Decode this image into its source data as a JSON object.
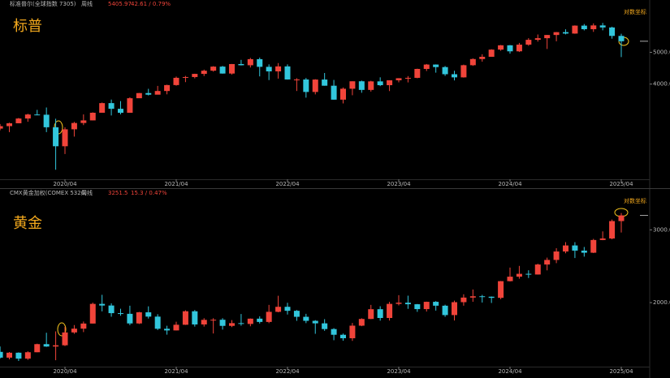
{
  "chart_data": [
    {
      "type": "candlestick",
      "title": "标普",
      "instrument": "标准普尔(全球指数 7305)",
      "period": "周线",
      "price": "5405.97",
      "change": "42.61 / 0.79%",
      "scale_label": "对数坐标",
      "log_scale": true,
      "up_color": "#f0443a",
      "down_color": "#32c6dc",
      "x": [
        "2019/09",
        "2019/10",
        "2019/11",
        "2019/12",
        "2020/01",
        "2020/02",
        "2020/03",
        "2020/04",
        "2020/05",
        "2020/06",
        "2020/07",
        "2020/08",
        "2020/09",
        "2020/10",
        "2020/11",
        "2020/12",
        "2021/01",
        "2021/02",
        "2021/03",
        "2021/04",
        "2021/05",
        "2021/06",
        "2021/07",
        "2021/08",
        "2021/09",
        "2021/10",
        "2021/11",
        "2021/12",
        "2022/01",
        "2022/02",
        "2022/03",
        "2022/04",
        "2022/05",
        "2022/06",
        "2022/07",
        "2022/08",
        "2022/09",
        "2022/10",
        "2022/11",
        "2022/12",
        "2023/01",
        "2023/02",
        "2023/03",
        "2023/04",
        "2023/05",
        "2023/06",
        "2023/07",
        "2023/08",
        "2023/09",
        "2023/10",
        "2023/11",
        "2023/12",
        "2024/01",
        "2024/02",
        "2024/03",
        "2024/04",
        "2024/05",
        "2024/06",
        "2024/07",
        "2024/08",
        "2024/09",
        "2024/10",
        "2024/11",
        "2024/12",
        "2025/01",
        "2025/02",
        "2025/03",
        "2025/04"
      ],
      "open": [
        2926,
        2977,
        3038,
        3141,
        3231,
        3226,
        2954,
        2585,
        2912,
        3044,
        3100,
        3271,
        3500,
        3363,
        3270,
        3622,
        3756,
        3714,
        3811,
        3973,
        4181,
        4204,
        4298,
        4395,
        4523,
        4308,
        4605,
        4567,
        4766,
        4516,
        4374,
        4530,
        4132,
        4132,
        3785,
        4130,
        3955,
        3586,
        3872,
        4080,
        3840,
        4077,
        3970,
        4109,
        4169,
        4180,
        4450,
        4589,
        4508,
        4288,
        4194,
        4568,
        4770,
        4846,
        5096,
        5254,
        5036,
        5278,
        5460,
        5522,
        5648,
        5762,
        5705,
        6032,
        5882,
        6041,
        5955,
        5612
      ],
      "high": [
        3022,
        3050,
        3154,
        3248,
        3338,
        3394,
        3136,
        2955,
        3068,
        3233,
        3280,
        3514,
        3588,
        3549,
        3646,
        3760,
        3870,
        3950,
        3983,
        4218,
        4238,
        4302,
        4429,
        4537,
        4546,
        4608,
        4743,
        4808,
        4818,
        4595,
        4637,
        4594,
        4170,
        4177,
        4140,
        4325,
        4119,
        3906,
        4080,
        4101,
        4095,
        4195,
        4110,
        4170,
        4232,
        4458,
        4607,
        4594,
        4541,
        4393,
        4587,
        4793,
        4932,
        5111,
        5265,
        5264,
        5342,
        5524,
        5669,
        5651,
        5768,
        5879,
        6044,
        6100,
        6129,
        6147,
        5987,
        5695
      ],
      "low": [
        2892,
        2855,
        3038,
        3070,
        3214,
        2855,
        2192,
        2448,
        2766,
        2999,
        3101,
        3275,
        3209,
        3233,
        3279,
        3633,
        3694,
        3725,
        3723,
        3955,
        4056,
        4164,
        4233,
        4367,
        4305,
        4279,
        4560,
        4495,
        4223,
        4115,
        4157,
        4129,
        3811,
        3637,
        3721,
        3955,
        3585,
        3492,
        3699,
        3764,
        3795,
        3944,
        3809,
        4049,
        4048,
        4167,
        4385,
        4335,
        4238,
        4104,
        4187,
        4546,
        4683,
        4845,
        5056,
        4954,
        5012,
        5235,
        5391,
        5120,
        5403,
        5674,
        5696,
        5833,
        5773,
        5837,
        5504,
        4835
      ],
      "close": [
        2977,
        3038,
        3141,
        3231,
        3226,
        2954,
        2585,
        2912,
        3044,
        3100,
        3271,
        3500,
        3363,
        3270,
        3622,
        3756,
        3714,
        3811,
        3973,
        4181,
        4204,
        4298,
        4395,
        4523,
        4308,
        4605,
        4567,
        4766,
        4516,
        4374,
        4530,
        4132,
        4132,
        3785,
        4130,
        3955,
        3586,
        3872,
        4080,
        3840,
        4077,
        3970,
        4109,
        4169,
        4180,
        4450,
        4589,
        4508,
        4288,
        4194,
        4568,
        4770,
        4846,
        5096,
        5254,
        5036,
        5278,
        5460,
        5522,
        5648,
        5762,
        5705,
        6032,
        5882,
        6041,
        5955,
        5612,
        5406
      ],
      "ylim": [
        2050,
        6900
      ],
      "yticks": [
        {
          "value": 4000,
          "label": "4000.00"
        },
        {
          "value": 5000,
          "label": "5000.00"
        }
      ],
      "xticks": [
        "2020/04",
        "2021/04",
        "2022/04",
        "2023/04",
        "2024/04",
        "2025/04"
      ]
    },
    {
      "type": "candlestick",
      "title": "黄金",
      "instrument": "CMX黄金加权(COMEX 5320)",
      "period": "周线",
      "price": "3251.5",
      "change": "15.3 / 0.47%",
      "scale_label": "对数坐标",
      "log_scale": true,
      "up_color": "#f0443a",
      "down_color": "#32c6dc",
      "x": [
        "2019/09",
        "2019/10",
        "2019/11",
        "2019/12",
        "2020/01",
        "2020/02",
        "2020/03",
        "2020/04",
        "2020/05",
        "2020/06",
        "2020/07",
        "2020/08",
        "2020/09",
        "2020/10",
        "2020/11",
        "2020/12",
        "2021/01",
        "2021/02",
        "2021/03",
        "2021/04",
        "2021/05",
        "2021/06",
        "2021/07",
        "2021/08",
        "2021/09",
        "2021/10",
        "2021/11",
        "2021/12",
        "2022/01",
        "2022/02",
        "2022/03",
        "2022/04",
        "2022/05",
        "2022/06",
        "2022/07",
        "2022/08",
        "2022/09",
        "2022/10",
        "2022/11",
        "2022/12",
        "2023/01",
        "2023/02",
        "2023/03",
        "2023/04",
        "2023/05",
        "2023/06",
        "2023/07",
        "2023/08",
        "2023/09",
        "2023/10",
        "2023/11",
        "2023/12",
        "2024/01",
        "2024/02",
        "2024/03",
        "2024/04",
        "2024/05",
        "2024/06",
        "2024/07",
        "2024/08",
        "2024/09",
        "2024/10",
        "2024/11",
        "2024/12",
        "2025/01",
        "2025/02",
        "2025/03",
        "2025/04"
      ],
      "open": [
        1520,
        1472,
        1513,
        1464,
        1517,
        1587,
        1566,
        1577,
        1694,
        1730,
        1780,
        1986,
        1968,
        1886,
        1879,
        1781,
        1895,
        1850,
        1729,
        1713,
        1768,
        1906,
        1771,
        1817,
        1818,
        1757,
        1784,
        1776,
        1829,
        1796,
        1900,
        1954,
        1911,
        1848,
        1807,
        1782,
        1726,
        1672,
        1640,
        1759,
        1826,
        1928,
        1836,
        1986,
        1999,
        1982,
        1929,
        2009,
        1966,
        1866,
        2005,
        2057,
        2072,
        2067,
        2054,
        2254,
        2311,
        2348,
        2339,
        2473,
        2537,
        2659,
        2750,
        2672,
        2641,
        2835,
        2859,
        3150
      ],
      "high": [
        1567,
        1519,
        1516,
        1525,
        1591,
        1691,
        1704,
        1748,
        1765,
        1800,
        2000,
        2089,
        1992,
        1933,
        1966,
        1900,
        1959,
        1875,
        1758,
        1798,
        1916,
        1919,
        1834,
        1834,
        1834,
        1814,
        1877,
        1831,
        1853,
        1975,
        2078,
        1998,
        1919,
        1879,
        1814,
        1824,
        1735,
        1683,
        1786,
        1833,
        1975,
        1960,
        2009,
        2085,
        2079,
        1985,
        2011,
        2017,
        1977,
        2022,
        2095,
        2152,
        2088,
        2070,
        2256,
        2431,
        2454,
        2395,
        2484,
        2570,
        2708,
        2801,
        2801,
        2727,
        2853,
        2974,
        3177,
        3295
      ],
      "low": [
        1465,
        1458,
        1445,
        1454,
        1517,
        1563,
        1451,
        1570,
        1681,
        1697,
        1780,
        1905,
        1849,
        1859,
        1764,
        1775,
        1830,
        1717,
        1673,
        1713,
        1766,
        1750,
        1750,
        1684,
        1721,
        1745,
        1759,
        1753,
        1780,
        1784,
        1895,
        1872,
        1807,
        1784,
        1681,
        1709,
        1622,
        1618,
        1616,
        1754,
        1824,
        1809,
        1810,
        1969,
        1932,
        1900,
        1903,
        1913,
        1848,
        1810,
        1966,
        2009,
        2001,
        1996,
        2038,
        2250,
        2285,
        2294,
        2338,
        2394,
        2492,
        2633,
        2564,
        2584,
        2636,
        2832,
        2846,
        2956
      ],
      "close": [
        1472,
        1513,
        1464,
        1517,
        1587,
        1566,
        1577,
        1694,
        1730,
        1780,
        1986,
        1968,
        1886,
        1879,
        1781,
        1895,
        1850,
        1729,
        1713,
        1768,
        1906,
        1771,
        1817,
        1818,
        1757,
        1784,
        1776,
        1829,
        1796,
        1900,
        1954,
        1911,
        1848,
        1807,
        1782,
        1726,
        1672,
        1640,
        1759,
        1826,
        1928,
        1836,
        1986,
        1999,
        1982,
        1929,
        2009,
        1966,
        1866,
        2005,
        2057,
        2072,
        2067,
        2054,
        2254,
        2311,
        2348,
        2339,
        2473,
        2537,
        2659,
        2750,
        2672,
        2641,
        2835,
        2859,
        3150,
        3251
      ],
      "ylim": [
        1400,
        3600
      ],
      "yticks": [
        {
          "value": 2000,
          "label": "2000.0"
        },
        {
          "value": 3000,
          "label": "3000.0"
        }
      ],
      "xticks": [
        "2020/04",
        "2021/04",
        "2022/04",
        "2023/04",
        "2024/04",
        "2025/04"
      ]
    }
  ]
}
